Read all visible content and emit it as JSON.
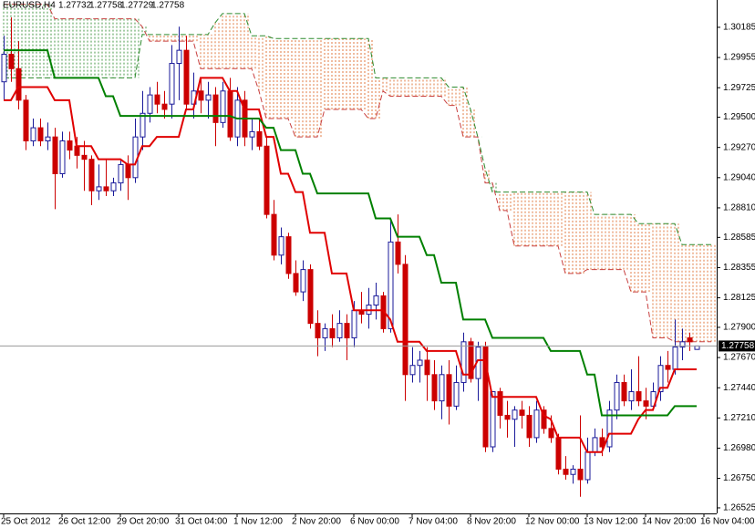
{
  "chart_data": {
    "type": "candlestick",
    "title": "EURUSD,H4",
    "categories": [
      "25 Oct 2012",
      null,
      null,
      null,
      null,
      null,
      null,
      null,
      "26 Oct 12:00",
      null,
      null,
      null,
      null,
      null,
      null,
      null,
      "29 Oct 20:00",
      null,
      null,
      null,
      null,
      null,
      null,
      null,
      "31 Oct 04:00",
      null,
      null,
      null,
      null,
      null,
      null,
      null,
      "1 Nov 12:00",
      null,
      null,
      null,
      null,
      null,
      null,
      null,
      "2 Nov 20:00",
      null,
      null,
      null,
      null,
      null,
      null,
      null,
      "6 Nov 00:00",
      null,
      null,
      null,
      null,
      null,
      null,
      null,
      "7 Nov 04:00",
      null,
      null,
      null,
      null,
      null,
      null,
      null,
      "8 Nov 20:00",
      null,
      null,
      null,
      null,
      null,
      null,
      null,
      "12 Nov 00:00",
      null,
      null,
      null,
      null,
      null,
      null,
      null,
      "13 Nov 12:00",
      null,
      null,
      null,
      null,
      null,
      null,
      null,
      "14 Nov 20:00",
      null,
      null,
      null,
      null,
      null,
      null,
      null,
      "16 Nov 04:00",
      null
    ],
    "ohlc": [
      [
        1.2977,
        1.3012,
        1.2963,
        1.2998
      ],
      [
        1.2998,
        1.3026,
        1.2977,
        1.2987
      ],
      [
        1.2987,
        1.3008,
        1.2956,
        1.2963
      ],
      [
        1.2963,
        1.2967,
        1.2925,
        1.2932
      ],
      [
        1.2932,
        1.2949,
        1.2928,
        1.2942
      ],
      [
        1.2942,
        1.2949,
        1.2928,
        1.2932
      ],
      [
        1.2932,
        1.2946,
        1.2925,
        1.2935
      ],
      [
        1.2935,
        1.2942,
        1.288,
        1.2907
      ],
      [
        1.2907,
        1.2939,
        1.2904,
        1.2932
      ],
      [
        1.2932,
        1.2939,
        1.2918,
        1.2925
      ],
      [
        1.2928,
        1.2935,
        1.2911,
        1.2921
      ],
      [
        1.2921,
        1.2932,
        1.2894,
        1.2918
      ],
      [
        1.2918,
        1.2921,
        1.2883,
        1.2894
      ],
      [
        1.2894,
        1.2914,
        1.2887,
        1.2897
      ],
      [
        1.2897,
        1.2918,
        1.289,
        1.2894
      ],
      [
        1.2894,
        1.2904,
        1.289,
        1.29
      ],
      [
        1.29,
        1.2918,
        1.2894,
        1.2914
      ],
      [
        1.2914,
        1.2921,
        1.2887,
        1.2904
      ],
      [
        1.2904,
        1.2949,
        1.29,
        1.2935
      ],
      [
        1.2935,
        1.297,
        1.2925,
        1.2953
      ],
      [
        1.2953,
        1.2973,
        1.2946,
        1.2967
      ],
      [
        1.2967,
        1.2977,
        1.2953,
        1.296
      ],
      [
        1.296,
        1.297,
        1.2949,
        1.2956
      ],
      [
        1.296,
        1.3005,
        1.2949,
        1.2991
      ],
      [
        1.2991,
        1.3019,
        1.2963,
        1.3001
      ],
      [
        1.3001,
        1.3012,
        1.2956,
        1.296
      ],
      [
        1.296,
        1.2984,
        1.2949,
        1.297
      ],
      [
        1.297,
        1.298,
        1.2953,
        1.2963
      ],
      [
        1.2963,
        1.2977,
        1.2949,
        1.2967
      ],
      [
        1.2967,
        1.2973,
        1.2928,
        1.2946
      ],
      [
        1.2946,
        1.2977,
        1.2942,
        1.297
      ],
      [
        1.297,
        1.298,
        1.2932,
        1.2935
      ],
      [
        1.2935,
        1.2973,
        1.2928,
        1.2963
      ],
      [
        1.2963,
        1.297,
        1.2928,
        1.2935
      ],
      [
        1.2935,
        1.2949,
        1.2925,
        1.2939
      ],
      [
        1.2939,
        1.2949,
        1.2925,
        1.2928
      ],
      [
        1.2928,
        1.2935,
        1.2873,
        1.2876
      ],
      [
        1.2876,
        1.2887,
        1.2841,
        1.2845
      ],
      [
        1.2845,
        1.2866,
        1.2838,
        1.2859
      ],
      [
        1.2859,
        1.2862,
        1.2827,
        1.2831
      ],
      [
        1.2831,
        1.2841,
        1.2814,
        1.2817
      ],
      [
        1.2817,
        1.2841,
        1.281,
        1.2834
      ],
      [
        1.2834,
        1.2838,
        1.2789,
        1.2793
      ],
      [
        1.2793,
        1.2803,
        1.2768,
        1.2782
      ],
      [
        1.2782,
        1.2793,
        1.2772,
        1.2789
      ],
      [
        1.2789,
        1.28,
        1.2775,
        1.2782
      ],
      [
        1.2782,
        1.2803,
        1.2779,
        1.2793
      ],
      [
        1.2793,
        1.28,
        1.2765,
        1.2782
      ],
      [
        1.2782,
        1.281,
        1.2775,
        1.2803
      ],
      [
        1.2803,
        1.2817,
        1.2793,
        1.28
      ],
      [
        1.28,
        1.282,
        1.2789,
        1.2807
      ],
      [
        1.2807,
        1.2824,
        1.2796,
        1.2814
      ],
      [
        1.2814,
        1.2817,
        1.2786,
        1.2789
      ],
      [
        1.2789,
        1.2873,
        1.2786,
        1.2855
      ],
      [
        1.2855,
        1.2876,
        1.2831,
        1.2838
      ],
      [
        1.2838,
        1.2845,
        1.2734,
        1.2754
      ],
      [
        1.2754,
        1.2775,
        1.2748,
        1.2761
      ],
      [
        1.2761,
        1.2772,
        1.2748,
        1.2765
      ],
      [
        1.2765,
        1.2775,
        1.2734,
        1.2754
      ],
      [
        1.2754,
        1.2765,
        1.2727,
        1.2734
      ],
      [
        1.2734,
        1.2761,
        1.272,
        1.2754
      ],
      [
        1.2754,
        1.2765,
        1.2716,
        1.273
      ],
      [
        1.273,
        1.2761,
        1.2727,
        1.2748
      ],
      [
        1.2748,
        1.2786,
        1.2741,
        1.2779
      ],
      [
        1.2779,
        1.2782,
        1.2748,
        1.2751
      ],
      [
        1.2751,
        1.2779,
        1.2734,
        1.2775
      ],
      [
        1.2775,
        1.2779,
        1.2695,
        1.2699
      ],
      [
        1.2699,
        1.2741,
        1.2695,
        1.2741
      ],
      [
        1.2741,
        1.2744,
        1.2713,
        1.2723
      ],
      [
        1.2723,
        1.2734,
        1.2706,
        1.272
      ],
      [
        1.272,
        1.273,
        1.2699,
        1.2727
      ],
      [
        1.2727,
        1.2734,
        1.2713,
        1.2723
      ],
      [
        1.2723,
        1.273,
        1.2699,
        1.2706
      ],
      [
        1.2706,
        1.2734,
        1.2702,
        1.2727
      ],
      [
        1.2727,
        1.273,
        1.2709,
        1.2713
      ],
      [
        1.2713,
        1.2723,
        1.2702,
        1.2706
      ],
      [
        1.2706,
        1.2709,
        1.2678,
        1.2682
      ],
      [
        1.2682,
        1.2692,
        1.2674,
        1.2678
      ],
      [
        1.2678,
        1.2685,
        1.2671,
        1.2682
      ],
      [
        1.2682,
        1.2723,
        1.2661,
        1.2674
      ],
      [
        1.2674,
        1.2706,
        1.2671,
        1.2695
      ],
      [
        1.2695,
        1.2713,
        1.2692,
        1.2706
      ],
      [
        1.2706,
        1.2713,
        1.2692,
        1.2699
      ],
      [
        1.2699,
        1.2734,
        1.2695,
        1.2727
      ],
      [
        1.2727,
        1.2754,
        1.272,
        1.2748
      ],
      [
        1.2748,
        1.2754,
        1.273,
        1.2734
      ],
      [
        1.2734,
        1.2758,
        1.2727,
        1.2741
      ],
      [
        1.2741,
        1.2768,
        1.273,
        1.2734
      ],
      [
        1.2734,
        1.2744,
        1.272,
        1.273
      ],
      [
        1.273,
        1.2748,
        1.2727,
        1.2741
      ],
      [
        1.2741,
        1.2768,
        1.2734,
        1.2761
      ],
      [
        1.2761,
        1.2772,
        1.2748,
        1.2758
      ],
      [
        1.2758,
        1.2796,
        1.2754,
        1.2775
      ],
      [
        1.2775,
        1.2789,
        1.2765,
        1.2779
      ],
      [
        1.2782,
        1.2786,
        1.2772,
        1.2779
      ],
      [
        1.27732,
        1.27758,
        1.27729,
        1.27758
      ],
      null,
      null
    ],
    "up_color": "#1a1a9a",
    "down_color": "#cc0000",
    "series": [
      {
        "color": "#e00000",
        "values": [
          1.2963,
          1.2963,
          1.2973,
          1.2973,
          1.2973,
          1.2973,
          1.2973,
          1.2963,
          1.2963,
          1.2963,
          1.2928,
          1.2928,
          1.2928,
          1.2918,
          1.2918,
          1.2918,
          1.2918,
          1.2914,
          1.2914,
          1.2928,
          1.2928,
          1.2935,
          1.2935,
          1.2935,
          1.2935,
          1.2956,
          1.2956,
          1.298,
          1.298,
          1.298,
          1.298,
          1.297,
          1.297,
          1.2956,
          1.2956,
          1.2956,
          1.2935,
          1.2935,
          1.2907,
          1.2907,
          1.2893,
          1.2893,
          1.2862,
          1.2862,
          1.2862,
          1.2831,
          1.2831,
          1.2831,
          1.2803,
          1.2803,
          1.2803,
          1.2803,
          1.2803,
          1.2796,
          1.2779,
          1.2779,
          1.2779,
          1.2779,
          1.2772,
          1.2772,
          1.2772,
          1.2772,
          1.2772,
          1.2754,
          1.2754,
          1.2765,
          1.2765,
          1.2737,
          1.2737,
          1.2737,
          1.2737,
          1.2737,
          1.2737,
          1.2737,
          1.2723,
          1.272,
          1.2706,
          1.2706,
          1.2706,
          1.2706,
          1.2695,
          1.2695,
          1.2695,
          1.2709,
          1.2709,
          1.2709,
          1.2709,
          1.272,
          1.2727,
          1.2727,
          1.2744,
          1.2744,
          1.2758,
          1.2758,
          1.2758,
          1.2758,
          null,
          null
        ]
      },
      {
        "color": "#008000",
        "values": [
          1.3001,
          1.3001,
          1.3001,
          1.3001,
          1.3001,
          1.3001,
          1.3001,
          1.298,
          1.298,
          1.298,
          1.298,
          1.298,
          1.298,
          1.298,
          1.2966,
          1.2966,
          1.2951,
          1.2951,
          1.2951,
          1.2951,
          1.2951,
          1.2951,
          1.2951,
          1.2951,
          1.2951,
          1.2951,
          1.2951,
          1.2951,
          1.2951,
          1.2951,
          1.2951,
          1.2951,
          1.2949,
          1.2949,
          1.2949,
          1.2949,
          1.2942,
          1.2942,
          1.2925,
          1.2925,
          1.2925,
          1.2907,
          1.2907,
          1.2892,
          1.2892,
          1.2892,
          1.2892,
          1.2892,
          1.2892,
          1.2892,
          1.2892,
          1.2873,
          1.2873,
          1.2873,
          1.2859,
          1.2859,
          1.2859,
          1.2859,
          1.2845,
          1.2845,
          1.2824,
          1.2824,
          1.2824,
          1.2796,
          1.2796,
          1.2796,
          1.2796,
          1.2782,
          1.2782,
          1.2782,
          1.2782,
          1.2782,
          1.2782,
          1.2782,
          1.2782,
          1.2772,
          1.2772,
          1.2772,
          1.2772,
          1.2772,
          1.2754,
          1.2754,
          1.2723,
          1.2723,
          1.2723,
          1.2723,
          1.2723,
          1.2723,
          1.2723,
          1.2723,
          1.2723,
          1.2723,
          1.273,
          1.273,
          1.273,
          1.273,
          null,
          null
        ]
      }
    ],
    "cloud": {
      "span_a": {
        "color": "#c84040",
        "values": [
          1.3036,
          1.3036,
          1.3036,
          1.3036,
          1.3036,
          1.3036,
          1.3036,
          1.3025,
          1.3025,
          1.3025,
          1.3025,
          1.3025,
          1.3025,
          1.3025,
          1.3025,
          1.3025,
          1.3025,
          1.3025,
          1.3025,
          1.3019,
          1.3008,
          1.3008,
          1.3008,
          1.3008,
          1.3008,
          1.3008,
          1.3008,
          1.2987,
          1.2987,
          1.2987,
          1.2987,
          1.2987,
          1.2987,
          1.2987,
          1.2987,
          1.297,
          1.2949,
          1.2949,
          1.2949,
          1.2949,
          1.2935,
          1.2935,
          1.2935,
          1.2935,
          1.2956,
          1.2956,
          1.2956,
          1.2956,
          1.2956,
          1.2956,
          1.2949,
          1.2949,
          1.297,
          1.2966,
          1.2966,
          1.2966,
          1.2966,
          1.2966,
          1.2966,
          1.2966,
          1.2966,
          1.2959,
          1.2959,
          1.2935,
          1.2935,
          1.2935,
          1.29,
          1.29,
          1.2879,
          1.2879,
          1.2852,
          1.2852,
          1.2852,
          1.2852,
          1.2852,
          1.2852,
          1.2852,
          1.2831,
          1.2831,
          1.2831,
          1.2834,
          1.2834,
          1.2834,
          1.2834,
          1.2834,
          1.2834,
          1.2817,
          1.2817,
          1.2817,
          1.2782,
          1.2782,
          1.2782,
          1.2779,
          1.2779,
          1.2779,
          1.2779,
          1.2779,
          1.2779
        ]
      },
      "span_b": {
        "color": "#2e8b2e",
        "values": [
          1.298,
          1.298,
          1.298,
          1.298,
          1.298,
          1.298,
          1.298,
          1.298,
          1.298,
          1.298,
          1.298,
          1.298,
          1.298,
          1.298,
          1.298,
          1.298,
          1.298,
          1.298,
          1.298,
          1.3013,
          1.3013,
          1.3013,
          1.3013,
          1.3013,
          1.3013,
          1.3013,
          1.3013,
          1.3013,
          1.3013,
          1.3022,
          1.3029,
          1.3029,
          1.3029,
          1.3029,
          1.3012,
          1.3012,
          1.3012,
          1.301,
          1.301,
          1.301,
          1.301,
          1.301,
          1.301,
          1.301,
          1.301,
          1.301,
          1.301,
          1.301,
          1.301,
          1.301,
          1.301,
          1.298,
          1.298,
          1.298,
          1.298,
          1.298,
          1.298,
          1.298,
          1.298,
          1.298,
          1.298,
          1.2973,
          1.2973,
          1.2973,
          1.2956,
          1.2935,
          1.2911,
          1.2893,
          1.2893,
          1.2893,
          1.2893,
          1.2893,
          1.2893,
          1.2893,
          1.2893,
          1.2893,
          1.2893,
          1.2893,
          1.2893,
          1.2893,
          1.2893,
          1.2876,
          1.2876,
          1.2876,
          1.2876,
          1.2876,
          1.2876,
          1.2869,
          1.2869,
          1.2869,
          1.2869,
          1.2869,
          1.2869,
          1.2853,
          1.2853,
          1.2853,
          1.2853,
          1.2853
        ]
      },
      "up_color": "#4a9a4a",
      "down_color": "#e07a40"
    },
    "last_price": 1.27758,
    "ylim": [
      1.26483,
      1.30393
    ],
    "yticks": [
      1.30185,
      1.29955,
      1.29725,
      {
        "value": 1.295,
        "label": "1.29500"
      },
      {
        "value": 1.2927,
        "label": "1.29270"
      },
      {
        "value": 1.2904,
        "label": "1.29040"
      },
      {
        "value": 1.2881,
        "label": "1.28810"
      },
      1.28585,
      1.28355,
      1.28125,
      {
        "value": 1.279,
        "label": "1.27900"
      },
      {
        "value": 1.2767,
        "label": "1.27670"
      },
      {
        "value": 1.2744,
        "label": "1.27440"
      },
      {
        "value": 1.2721,
        "label": "1.27210"
      },
      {
        "value": 1.2698,
        "label": "1.26980"
      },
      {
        "value": 1.2675,
        "label": "1.26750"
      },
      1.26525
    ]
  }
}
